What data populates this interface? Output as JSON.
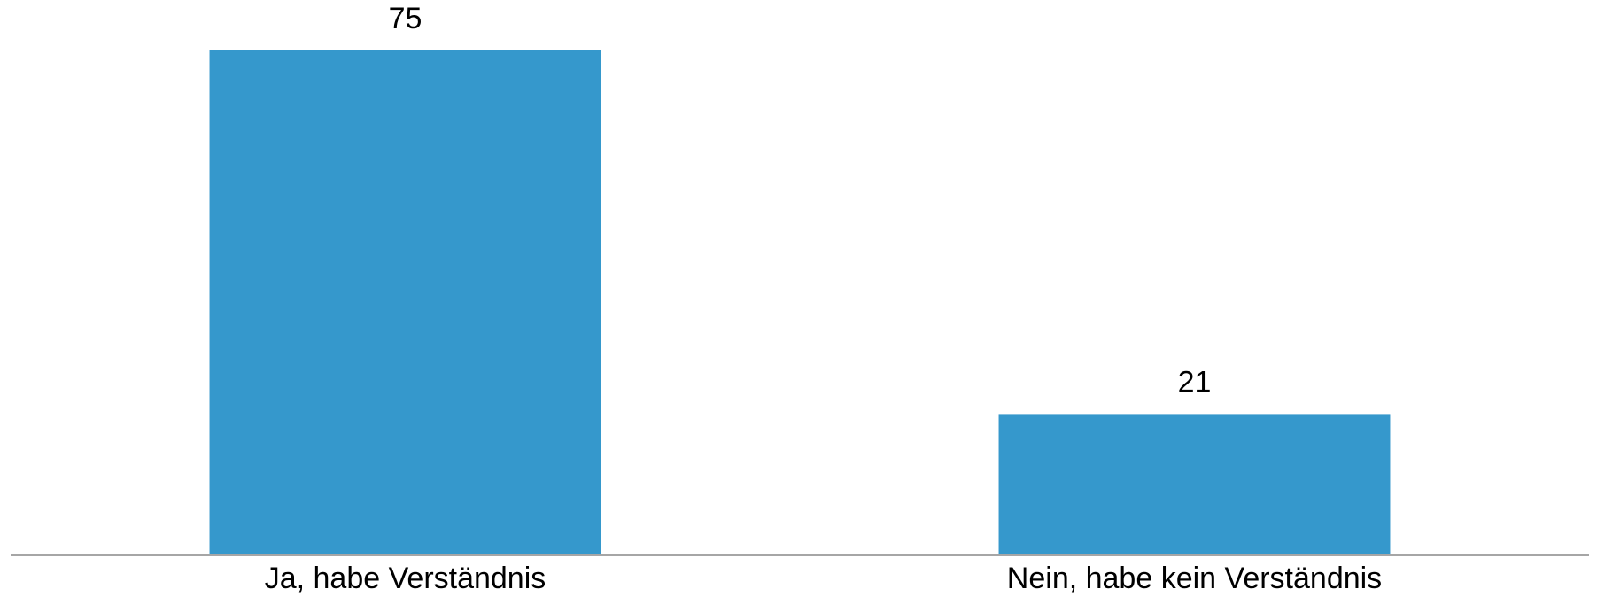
{
  "chart_data": {
    "type": "bar",
    "categories": [
      "Ja, habe Verständnis",
      "Nein, habe kein Verständnis"
    ],
    "values": [
      75,
      21
    ],
    "color": "#3598cc"
  }
}
